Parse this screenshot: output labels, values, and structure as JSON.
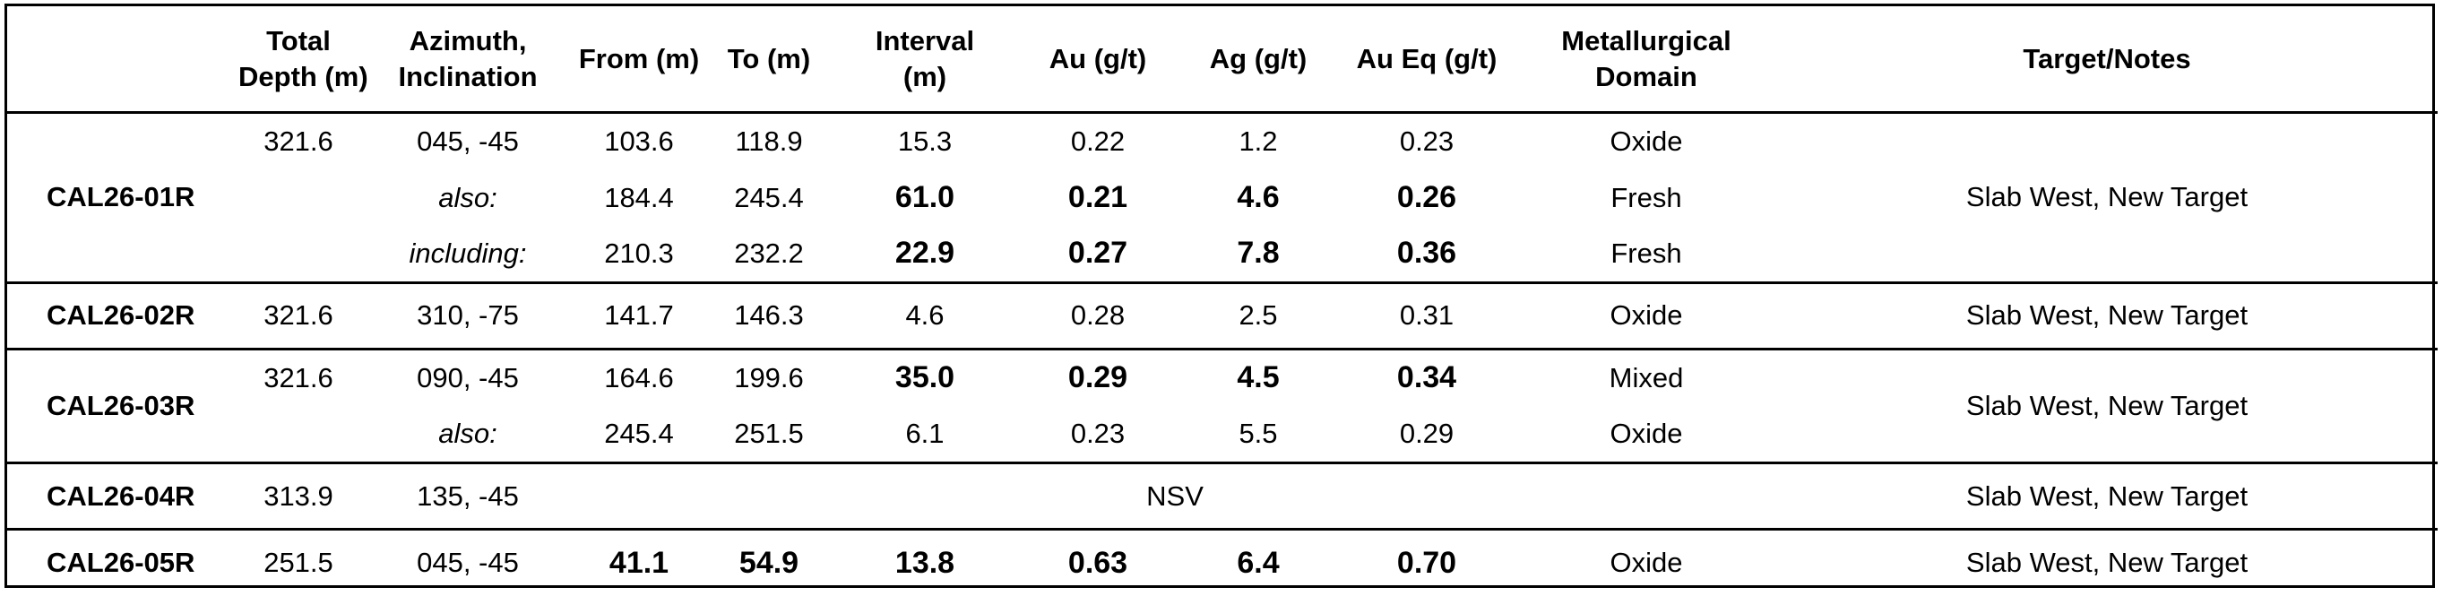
{
  "headers": [
    {
      "key": "hole",
      "lines": [
        ""
      ]
    },
    {
      "key": "depth",
      "lines": [
        "Total",
        "Depth (m)"
      ]
    },
    {
      "key": "azimuth",
      "lines": [
        "Azimuth,",
        "Inclination"
      ]
    },
    {
      "key": "from",
      "lines": [
        "From (m)"
      ]
    },
    {
      "key": "to",
      "lines": [
        "To (m)"
      ]
    },
    {
      "key": "interval",
      "lines": [
        "Interval",
        "(m)"
      ]
    },
    {
      "key": "au",
      "lines": [
        "Au (g/t)"
      ]
    },
    {
      "key": "ag",
      "lines": [
        "Ag (g/t)"
      ]
    },
    {
      "key": "aueq",
      "lines": [
        "Au Eq (g/t)"
      ]
    },
    {
      "key": "domain",
      "lines": [
        "Metallurgical",
        "Domain"
      ]
    },
    {
      "key": "notes",
      "lines": [
        "Target/Notes"
      ]
    }
  ],
  "holes": [
    {
      "id": "CAL26-01R",
      "notes": "Slab West, New Target",
      "rows": [
        {
          "depth": "321.6",
          "az": "045, -45",
          "az_italic": false,
          "from": "103.6",
          "to": "118.9",
          "interval": "15.3",
          "au": "0.22",
          "ag": "1.2",
          "aueq": "0.23",
          "domain": "Oxide",
          "bold": []
        },
        {
          "depth": "",
          "az": "also:",
          "az_italic": true,
          "from": "184.4",
          "to": "245.4",
          "interval": "61.0",
          "au": "0.21",
          "ag": "4.6",
          "aueq": "0.26",
          "domain": "Fresh",
          "bold": [
            "interval",
            "au",
            "ag",
            "aueq"
          ]
        },
        {
          "depth": "",
          "az": "including:",
          "az_italic": true,
          "from": "210.3",
          "to": "232.2",
          "interval": "22.9",
          "au": "0.27",
          "ag": "7.8",
          "aueq": "0.36",
          "domain": "Fresh",
          "bold": [
            "interval",
            "au",
            "ag",
            "aueq"
          ]
        }
      ]
    },
    {
      "id": "CAL26-02R",
      "notes": "Slab West, New Target",
      "rows": [
        {
          "depth": "321.6",
          "az": "310, -75",
          "az_italic": false,
          "from": "141.7",
          "to": "146.3",
          "interval": "4.6",
          "au": "0.28",
          "ag": "2.5",
          "aueq": "0.31",
          "domain": "Oxide",
          "bold": []
        }
      ]
    },
    {
      "id": "CAL26-03R",
      "notes": "Slab West, New Target",
      "rows": [
        {
          "depth": "321.6",
          "az": "090, -45",
          "az_italic": false,
          "from": "164.6",
          "to": "199.6",
          "interval": "35.0",
          "au": "0.29",
          "ag": "4.5",
          "aueq": "0.34",
          "domain": "Mixed",
          "bold": [
            "interval",
            "au",
            "ag",
            "aueq"
          ]
        },
        {
          "depth": "",
          "az": "also:",
          "az_italic": true,
          "from": "245.4",
          "to": "251.5",
          "interval": "6.1",
          "au": "0.23",
          "ag": "5.5",
          "aueq": "0.29",
          "domain": "Oxide",
          "bold": []
        }
      ]
    },
    {
      "id": "CAL26-04R",
      "notes": "Slab West, New Target",
      "nsv": "NSV",
      "rows": [
        {
          "depth": "313.9",
          "az": "135, -45",
          "az_italic": false
        }
      ]
    },
    {
      "id": "CAL26-05R",
      "notes": "Slab West, New Target",
      "rows": [
        {
          "depth": "251.5",
          "az": "045, -45",
          "az_italic": false,
          "from": "41.1",
          "to": "54.9",
          "interval": "13.8",
          "au": "0.63",
          "ag": "6.4",
          "aueq": "0.70",
          "domain": "Oxide",
          "bold": [
            "from",
            "to",
            "interval",
            "au",
            "ag",
            "aueq"
          ]
        }
      ]
    }
  ]
}
